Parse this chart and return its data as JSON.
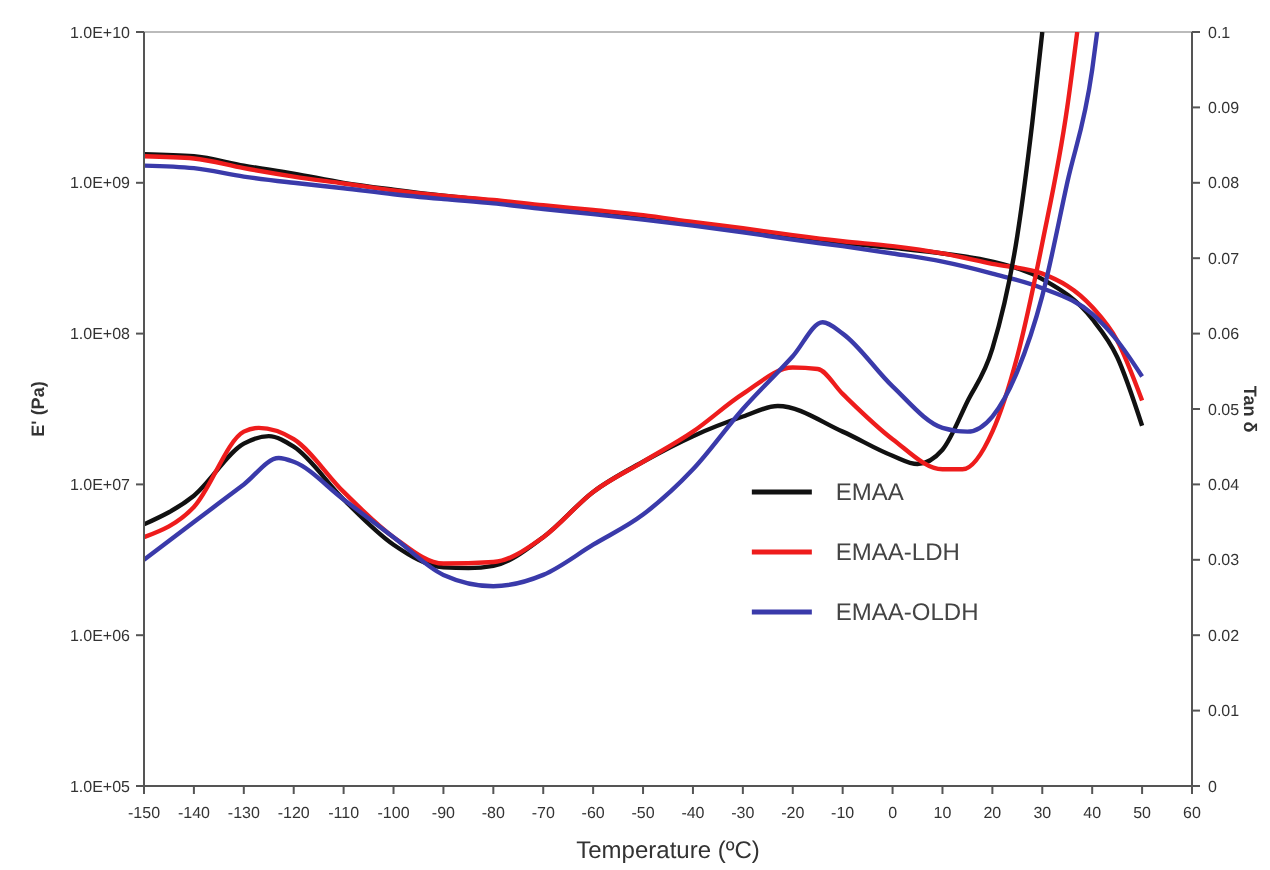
{
  "chart_data": {
    "type": "line",
    "xlabel": "Temperature (ºC)",
    "ylabel": "E' (Pa)",
    "y2label": "Tan δ",
    "log": "y",
    "grid": false,
    "legend": "right",
    "line_style": "solid",
    "xlim": [
      -150,
      60
    ],
    "xticks": [
      -150,
      -140,
      -130,
      -120,
      -110,
      -100,
      -90,
      -80,
      -70,
      -60,
      -50,
      -40,
      -30,
      -20,
      -10,
      0,
      10,
      20,
      30,
      40,
      50,
      60
    ],
    "ylim": [
      100000,
      10000000000
    ],
    "yticks": [
      {
        "value": 100000,
        "label": "1.0E+05"
      },
      {
        "value": 1000000,
        "label": "1.0E+06"
      },
      {
        "value": 10000000,
        "label": "1.0E+07"
      },
      {
        "value": 100000000,
        "label": "1.0E+08"
      },
      {
        "value": 1000000000,
        "label": "1.0E+09"
      },
      {
        "value": 10000000000,
        "label": "1.0E+10"
      }
    ],
    "y2lim": [
      0,
      0.1
    ],
    "y2ticks": [
      0,
      0.01,
      0.02,
      0.03,
      0.04,
      0.05,
      0.06,
      0.07,
      0.08,
      0.09,
      0.1
    ],
    "series": [
      {
        "color": "#111111",
        "x": [
          -150,
          -140,
          -130,
          -120,
          -110,
          -100,
          -90,
          -80,
          -70,
          -60,
          -50,
          -40,
          -30,
          -20,
          -10,
          0,
          10,
          20,
          30,
          40,
          45,
          50
        ],
        "values": [
          1550000000,
          1500000000,
          1300000000,
          1150000000,
          1000000000,
          900000000,
          820000000,
          760000000,
          700000000,
          650000000,
          600000000,
          540000000,
          490000000,
          440000000,
          400000000,
          370000000,
          340000000,
          300000000,
          230000000,
          125000000,
          70000000,
          24500000
        ]
      },
      {
        "color": "#ee1c1c",
        "x": [
          -150,
          -140,
          -130,
          -120,
          -110,
          -100,
          -90,
          -80,
          -70,
          -60,
          -50,
          -40,
          -30,
          -20,
          -10,
          0,
          10,
          20,
          30,
          40,
          45,
          50
        ],
        "values": [
          1500000000,
          1450000000,
          1250000000,
          1100000000,
          990000000,
          890000000,
          820000000,
          770000000,
          710000000,
          660000000,
          610000000,
          550000000,
          500000000,
          450000000,
          410000000,
          380000000,
          340000000,
          290000000,
          250000000,
          150000000,
          90000000,
          36000000
        ]
      },
      {
        "color": "#3a3aaa",
        "x": [
          -150,
          -140,
          -130,
          -120,
          -110,
          -100,
          -90,
          -80,
          -70,
          -60,
          -50,
          -40,
          -30,
          -20,
          -10,
          0,
          10,
          20,
          30,
          40,
          45,
          50
        ],
        "values": [
          1300000000,
          1250000000,
          1100000000,
          1000000000,
          920000000,
          840000000,
          780000000,
          730000000,
          670000000,
          620000000,
          570000000,
          520000000,
          470000000,
          420000000,
          380000000,
          340000000,
          300000000,
          250000000,
          200000000,
          135000000,
          90000000,
          52000000
        ]
      },
      {
        "name": "EMAA",
        "axis": "y2",
        "color": "#111111",
        "x": [
          -150,
          -140,
          -130,
          -125,
          -120,
          -110,
          -100,
          -90,
          -85,
          -80,
          -70,
          -60,
          -50,
          -40,
          -30,
          -23,
          -10,
          0,
          5,
          10,
          15,
          20,
          25,
          28,
          30
        ],
        "values": [
          0.0347,
          0.0385,
          0.0454,
          0.0464,
          0.045,
          0.038,
          0.032,
          0.029,
          0.0289,
          0.0292,
          0.033,
          0.039,
          0.043,
          0.0464,
          0.049,
          0.0504,
          0.047,
          0.0438,
          0.0427,
          0.0446,
          0.051,
          0.058,
          0.073,
          0.088,
          0.1
        ]
      },
      {
        "name": "EMAA-LDH",
        "axis": "y2",
        "color": "#ee1c1c",
        "x": [
          -150,
          -140,
          -130,
          -127,
          -120,
          -110,
          -100,
          -90,
          -80,
          -70,
          -60,
          -50,
          -40,
          -30,
          -20,
          -15,
          -10,
          0,
          10,
          14,
          20,
          25,
          30,
          35,
          37
        ],
        "values": [
          0.033,
          0.037,
          0.047,
          0.0475,
          0.046,
          0.039,
          0.033,
          0.0295,
          0.0297,
          0.033,
          0.039,
          0.043,
          0.047,
          0.052,
          0.0555,
          0.0553,
          0.052,
          0.046,
          0.042,
          0.042,
          0.047,
          0.057,
          0.072,
          0.09,
          0.1
        ]
      },
      {
        "name": "EMAA-OLDH",
        "axis": "y2",
        "color": "#3a3aaa",
        "x": [
          -150,
          -140,
          -130,
          -123,
          -120,
          -110,
          -100,
          -90,
          -80,
          -70,
          -60,
          -50,
          -40,
          -30,
          -20,
          -14,
          -10,
          0,
          10,
          15,
          20,
          25,
          30,
          35,
          40,
          41
        ],
        "values": [
          0.03,
          0.035,
          0.04,
          0.0435,
          0.043,
          0.038,
          0.033,
          0.028,
          0.0265,
          0.028,
          0.032,
          0.036,
          0.042,
          0.05,
          0.057,
          0.0615,
          0.06,
          0.053,
          0.0475,
          0.047,
          0.049,
          0.055,
          0.065,
          0.08,
          0.095,
          0.1
        ]
      }
    ]
  }
}
